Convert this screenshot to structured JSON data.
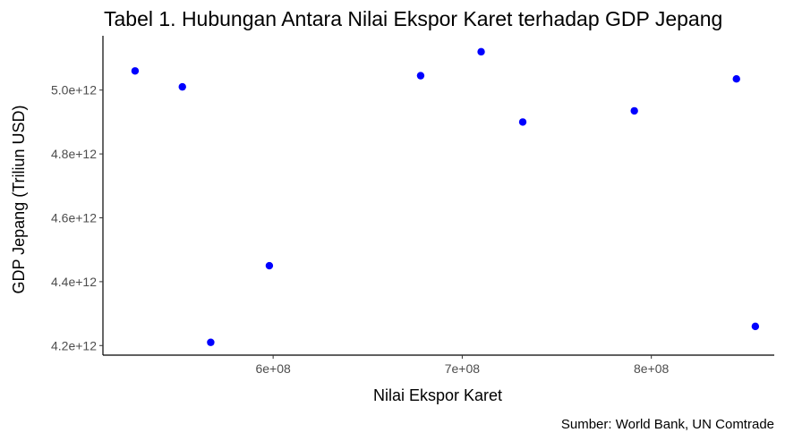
{
  "chart_data": {
    "type": "scatter",
    "title": "Tabel 1. Hubungan Antara Nilai Ekspor Karet terhadap GDP Jepang",
    "xlabel": "Nilai Ekspor Karet",
    "ylabel": "GDP Jepang (Triliun USD)",
    "caption": "Sumber: World Bank, UN Comtrade",
    "xlim": [
      510000000,
      865000000
    ],
    "ylim": [
      4170000000000,
      5170000000000
    ],
    "xticks": [
      600000000,
      700000000,
      800000000
    ],
    "xtick_labels": [
      "6e+08",
      "7e+08",
      "8e+08"
    ],
    "yticks": [
      4200000000000,
      4400000000000,
      4600000000000,
      4800000000000,
      5000000000000
    ],
    "ytick_labels": [
      "4.2e+12",
      "4.4e+12",
      "4.6e+12",
      "4.8e+12",
      "5.0e+12"
    ],
    "grid": false,
    "point_color": "#0000ff",
    "points": [
      {
        "x": 527000000,
        "y": 5060000000000
      },
      {
        "x": 552000000,
        "y": 5010000000000
      },
      {
        "x": 567000000,
        "y": 4210000000000
      },
      {
        "x": 598000000,
        "y": 4450000000000
      },
      {
        "x": 678000000,
        "y": 5045000000000
      },
      {
        "x": 710000000,
        "y": 5120000000000
      },
      {
        "x": 732000000,
        "y": 4900000000000
      },
      {
        "x": 791000000,
        "y": 4935000000000
      },
      {
        "x": 845000000,
        "y": 5035000000000
      },
      {
        "x": 855000000,
        "y": 4260000000000
      }
    ]
  }
}
